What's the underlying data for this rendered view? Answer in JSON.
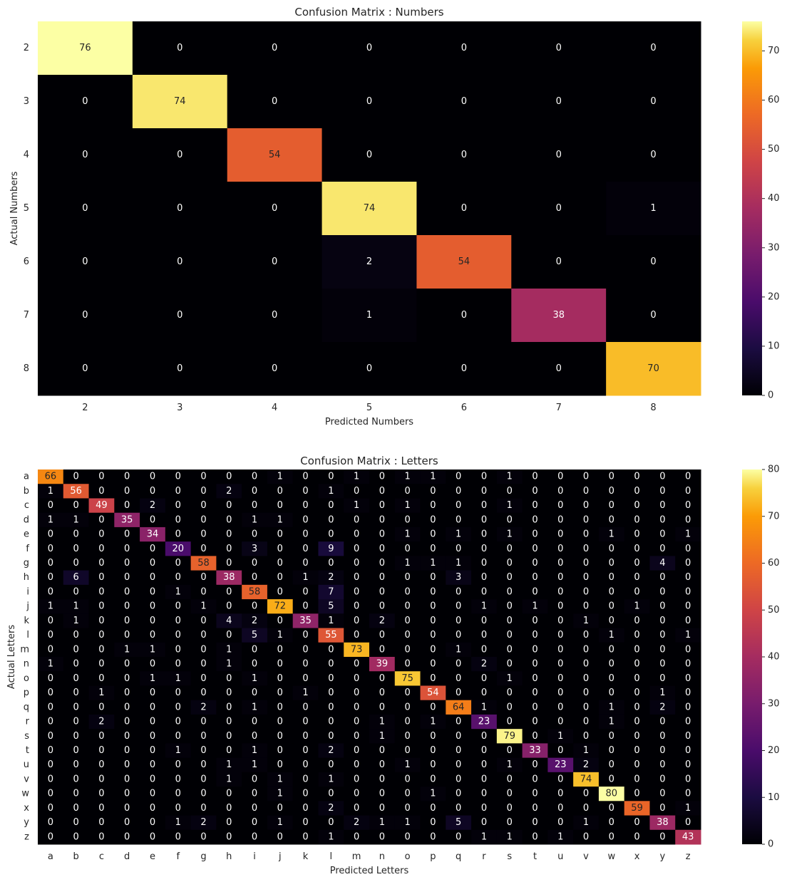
{
  "chart_data": [
    {
      "type": "heatmap",
      "title": "Confusion Matrix : Numbers",
      "xlabel": "Predicted Numbers",
      "ylabel": "Actual Numbers",
      "x_categories": [
        "2",
        "3",
        "4",
        "5",
        "6",
        "7",
        "8"
      ],
      "y_categories": [
        "2",
        "3",
        "4",
        "5",
        "6",
        "7",
        "8"
      ],
      "colormap": "inferno",
      "color_range": [
        0,
        76
      ],
      "colorbar_ticks": [
        0,
        10,
        20,
        30,
        40,
        50,
        60,
        70
      ],
      "values": [
        [
          76,
          0,
          0,
          0,
          0,
          0,
          0
        ],
        [
          0,
          74,
          0,
          0,
          0,
          0,
          0
        ],
        [
          0,
          0,
          54,
          0,
          0,
          0,
          0
        ],
        [
          0,
          0,
          0,
          74,
          0,
          0,
          1
        ],
        [
          0,
          0,
          0,
          2,
          54,
          0,
          0
        ],
        [
          0,
          0,
          0,
          1,
          0,
          38,
          0
        ],
        [
          0,
          0,
          0,
          0,
          0,
          0,
          70
        ]
      ]
    },
    {
      "type": "heatmap",
      "title": "Confusion Matrix : Letters",
      "xlabel": "Predicted Letters",
      "ylabel": "Actual Letters",
      "x_categories": [
        "a",
        "b",
        "c",
        "d",
        "e",
        "f",
        "g",
        "h",
        "i",
        "j",
        "k",
        "l",
        "m",
        "n",
        "o",
        "p",
        "q",
        "r",
        "s",
        "t",
        "u",
        "v",
        "w",
        "x",
        "y",
        "z"
      ],
      "y_categories": [
        "a",
        "b",
        "c",
        "d",
        "e",
        "f",
        "g",
        "h",
        "i",
        "j",
        "k",
        "l",
        "m",
        "n",
        "o",
        "p",
        "q",
        "r",
        "s",
        "t",
        "u",
        "v",
        "w",
        "x",
        "y",
        "z"
      ],
      "colormap": "inferno",
      "color_range": [
        0,
        80
      ],
      "colorbar_ticks": [
        0,
        10,
        20,
        30,
        40,
        50,
        60,
        70,
        80
      ],
      "values": [
        [
          66,
          0,
          0,
          0,
          0,
          0,
          0,
          0,
          0,
          1,
          0,
          0,
          1,
          0,
          1,
          1,
          0,
          0,
          1,
          0,
          0,
          0,
          0,
          0,
          0,
          0
        ],
        [
          1,
          56,
          0,
          0,
          0,
          0,
          0,
          2,
          0,
          0,
          0,
          1,
          0,
          0,
          0,
          0,
          0,
          0,
          0,
          0,
          0,
          0,
          0,
          0,
          0,
          0
        ],
        [
          0,
          0,
          49,
          0,
          2,
          0,
          0,
          0,
          0,
          0,
          0,
          0,
          1,
          0,
          1,
          0,
          0,
          0,
          1,
          0,
          0,
          0,
          0,
          0,
          0,
          0
        ],
        [
          1,
          1,
          0,
          35,
          0,
          0,
          0,
          0,
          1,
          1,
          0,
          0,
          0,
          0,
          0,
          0,
          0,
          0,
          0,
          0,
          0,
          0,
          0,
          0,
          0,
          0
        ],
        [
          0,
          0,
          0,
          0,
          34,
          0,
          0,
          0,
          0,
          0,
          0,
          0,
          0,
          0,
          1,
          0,
          1,
          0,
          1,
          0,
          0,
          0,
          1,
          0,
          0,
          1
        ],
        [
          0,
          0,
          0,
          0,
          0,
          20,
          0,
          0,
          3,
          0,
          0,
          9,
          0,
          0,
          0,
          0,
          0,
          0,
          0,
          0,
          0,
          0,
          0,
          0,
          0,
          0
        ],
        [
          0,
          0,
          0,
          0,
          0,
          0,
          58,
          0,
          0,
          0,
          0,
          0,
          0,
          0,
          1,
          1,
          1,
          0,
          0,
          0,
          0,
          0,
          0,
          0,
          4,
          0
        ],
        [
          0,
          6,
          0,
          0,
          0,
          0,
          0,
          38,
          0,
          0,
          1,
          2,
          0,
          0,
          0,
          0,
          3,
          0,
          0,
          0,
          0,
          0,
          0,
          0,
          0,
          0
        ],
        [
          0,
          0,
          0,
          0,
          0,
          1,
          0,
          0,
          58,
          0,
          0,
          7,
          0,
          0,
          0,
          0,
          0,
          0,
          0,
          0,
          0,
          0,
          0,
          0,
          0,
          0
        ],
        [
          1,
          1,
          0,
          0,
          0,
          0,
          1,
          0,
          0,
          72,
          0,
          5,
          0,
          0,
          0,
          0,
          0,
          1,
          0,
          1,
          0,
          0,
          0,
          1,
          0,
          0
        ],
        [
          0,
          1,
          0,
          0,
          0,
          0,
          0,
          4,
          2,
          0,
          35,
          1,
          0,
          2,
          0,
          0,
          0,
          0,
          0,
          0,
          0,
          1,
          0,
          0,
          0,
          0
        ],
        [
          0,
          0,
          0,
          0,
          0,
          0,
          0,
          0,
          5,
          1,
          0,
          55,
          0,
          0,
          0,
          0,
          0,
          0,
          0,
          0,
          0,
          0,
          1,
          0,
          0,
          1
        ],
        [
          0,
          0,
          0,
          1,
          1,
          0,
          0,
          1,
          0,
          0,
          0,
          0,
          73,
          0,
          0,
          0,
          1,
          0,
          0,
          0,
          0,
          0,
          0,
          0,
          0,
          0
        ],
        [
          1,
          0,
          0,
          0,
          0,
          0,
          0,
          1,
          0,
          0,
          0,
          0,
          0,
          39,
          0,
          0,
          0,
          2,
          0,
          0,
          0,
          0,
          0,
          0,
          0,
          0
        ],
        [
          0,
          0,
          0,
          0,
          1,
          1,
          0,
          0,
          1,
          0,
          0,
          0,
          0,
          0,
          75,
          0,
          0,
          0,
          1,
          0,
          0,
          0,
          0,
          0,
          0,
          0
        ],
        [
          0,
          0,
          1,
          0,
          0,
          0,
          0,
          0,
          0,
          0,
          1,
          0,
          0,
          0,
          0,
          54,
          0,
          0,
          0,
          0,
          0,
          0,
          0,
          0,
          1,
          0
        ],
        [
          0,
          0,
          0,
          0,
          0,
          0,
          2,
          0,
          1,
          0,
          0,
          0,
          0,
          0,
          0,
          0,
          64,
          1,
          0,
          0,
          0,
          0,
          1,
          0,
          2,
          0
        ],
        [
          0,
          0,
          2,
          0,
          0,
          0,
          0,
          0,
          0,
          0,
          0,
          0,
          0,
          1,
          0,
          1,
          0,
          23,
          0,
          0,
          0,
          0,
          1,
          0,
          0,
          0
        ],
        [
          0,
          0,
          0,
          0,
          0,
          0,
          0,
          0,
          0,
          0,
          0,
          0,
          0,
          1,
          0,
          0,
          0,
          0,
          79,
          0,
          1,
          0,
          0,
          0,
          0,
          0
        ],
        [
          0,
          0,
          0,
          0,
          0,
          1,
          0,
          0,
          1,
          0,
          0,
          2,
          0,
          0,
          0,
          0,
          0,
          0,
          0,
          33,
          0,
          1,
          0,
          0,
          0,
          0
        ],
        [
          0,
          0,
          0,
          0,
          0,
          0,
          0,
          1,
          1,
          0,
          0,
          0,
          0,
          0,
          1,
          0,
          0,
          0,
          1,
          0,
          23,
          2,
          0,
          0,
          0,
          0
        ],
        [
          0,
          0,
          0,
          0,
          0,
          0,
          0,
          1,
          0,
          1,
          0,
          1,
          0,
          0,
          0,
          0,
          0,
          0,
          0,
          0,
          0,
          74,
          0,
          0,
          0,
          0
        ],
        [
          0,
          0,
          0,
          0,
          0,
          0,
          0,
          0,
          0,
          1,
          0,
          0,
          0,
          0,
          0,
          1,
          0,
          0,
          0,
          0,
          0,
          0,
          80,
          0,
          0,
          0
        ],
        [
          0,
          0,
          0,
          0,
          0,
          0,
          0,
          0,
          0,
          0,
          0,
          2,
          0,
          0,
          0,
          0,
          0,
          0,
          0,
          0,
          0,
          0,
          0,
          59,
          0,
          1
        ],
        [
          0,
          0,
          0,
          0,
          0,
          1,
          2,
          0,
          0,
          1,
          0,
          0,
          2,
          1,
          1,
          0,
          5,
          0,
          0,
          0,
          0,
          1,
          0,
          0,
          38,
          0
        ],
        [
          0,
          0,
          0,
          0,
          0,
          0,
          0,
          0,
          0,
          0,
          0,
          1,
          0,
          0,
          0,
          0,
          0,
          1,
          1,
          0,
          1,
          0,
          0,
          0,
          0,
          43
        ]
      ]
    }
  ]
}
